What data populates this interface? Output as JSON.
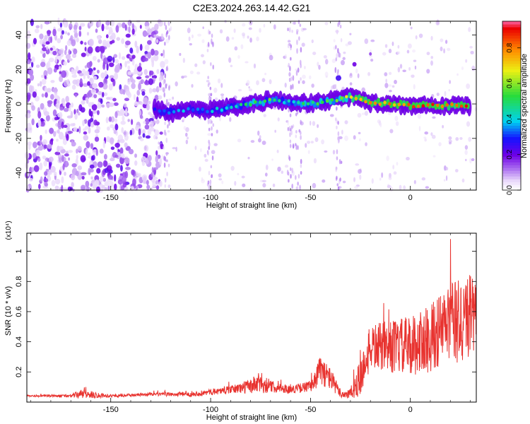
{
  "chart_data": [
    {
      "type": "heatmap",
      "title": "C2E3.2024.263.14.42.G21",
      "xlabel": "Height of straight line (km)",
      "ylabel": "Frequency (Hz)",
      "xlim": [
        -192,
        33
      ],
      "ylim": [
        -50,
        48
      ],
      "xticks": [
        -150,
        -100,
        -50,
        0
      ],
      "xtick_labels": [
        "-150",
        "-100",
        "-50",
        "0"
      ],
      "yticks": [
        -40,
        -20,
        0,
        20,
        40
      ],
      "ytick_labels": [
        "-40",
        "-20",
        "0",
        "20",
        "40"
      ],
      "colorbar": {
        "label": "Normalized spectral amplitude",
        "range": [
          0,
          0.95
        ],
        "ticks": [
          0,
          0.2,
          0.4,
          0.6,
          0.8
        ],
        "tick_labels": [
          "0.0",
          "0.2",
          "0.4",
          "0.6",
          "0.8"
        ],
        "colormap": "rainbow (white-violet-blue-cyan-green-yellow-red)"
      },
      "ridge": {
        "description": "dominant Doppler frequency ridge",
        "points": [
          {
            "x": -128,
            "y": -3,
            "amp": 0.3
          },
          {
            "x": -120,
            "y": -5,
            "amp": 0.4
          },
          {
            "x": -110,
            "y": -3,
            "amp": 0.35
          },
          {
            "x": -100,
            "y": -4,
            "amp": 0.38
          },
          {
            "x": -90,
            "y": -2,
            "amp": 0.45
          },
          {
            "x": -80,
            "y": 0,
            "amp": 0.5
          },
          {
            "x": -70,
            "y": 2,
            "amp": 0.55
          },
          {
            "x": -60,
            "y": 1,
            "amp": 0.4
          },
          {
            "x": -50,
            "y": 0,
            "amp": 0.55
          },
          {
            "x": -40,
            "y": 2,
            "amp": 0.55
          },
          {
            "x": -30,
            "y": 4,
            "amp": 0.7
          },
          {
            "x": -20,
            "y": 1,
            "amp": 0.85
          },
          {
            "x": -10,
            "y": 0,
            "amp": 0.8
          },
          {
            "x": 0,
            "y": -1,
            "amp": 0.88
          },
          {
            "x": 10,
            "y": -1,
            "amp": 0.9
          },
          {
            "x": 20,
            "y": -1,
            "amp": 0.9
          },
          {
            "x": 30,
            "y": -1,
            "amp": 0.85
          }
        ],
        "side_branch": [
          {
            "x": -36,
            "y": 15
          },
          {
            "x": -28,
            "y": 23
          },
          {
            "x": -20,
            "y": 29
          }
        ]
      },
      "noise": {
        "description": "scattered low-amplitude noise, dense for x < -130 km",
        "dense_below_x": -130
      }
    },
    {
      "type": "line",
      "xlabel": "Height of straight line (km)",
      "ylabel": "SNR (10 * v/v)",
      "y_multiplier": "(x10⁴)",
      "xlim": [
        -192,
        33
      ],
      "ylim": [
        0,
        1.12
      ],
      "xticks": [
        -150,
        -100,
        -50,
        0
      ],
      "xtick_labels": [
        "-150",
        "-100",
        "-50",
        "0"
      ],
      "yticks": [
        0.2,
        0.4,
        0.6,
        0.8,
        1.0
      ],
      "ytick_labels": [
        "0.2",
        "0.4",
        "0.6",
        "0.8",
        "1"
      ],
      "color": "#e8332f",
      "series": [
        {
          "name": "SNR",
          "envelope": {
            "x": [
              -192,
              -170,
              -165,
              -150,
              -130,
              -110,
              -90,
              -80,
              -75,
              -70,
              -60,
              -50,
              -45,
              -40,
              -35,
              -30,
              -25,
              -20,
              -10,
              0,
              10,
              20,
              25,
              30,
              33
            ],
            "base": [
              0.04,
              0.04,
              0.05,
              0.04,
              0.05,
              0.05,
              0.08,
              0.1,
              0.12,
              0.1,
              0.08,
              0.1,
              0.2,
              0.15,
              0.05,
              0.05,
              0.15,
              0.35,
              0.35,
              0.35,
              0.4,
              0.5,
              0.5,
              0.55,
              0.5
            ],
            "amp": [
              0.01,
              0.02,
              0.06,
              0.02,
              0.02,
              0.03,
              0.05,
              0.1,
              0.15,
              0.08,
              0.05,
              0.08,
              0.2,
              0.15,
              0.05,
              0.08,
              0.25,
              0.3,
              0.35,
              0.4,
              0.45,
              0.55,
              0.6,
              0.55,
              0.5
            ]
          }
        }
      ]
    }
  ]
}
